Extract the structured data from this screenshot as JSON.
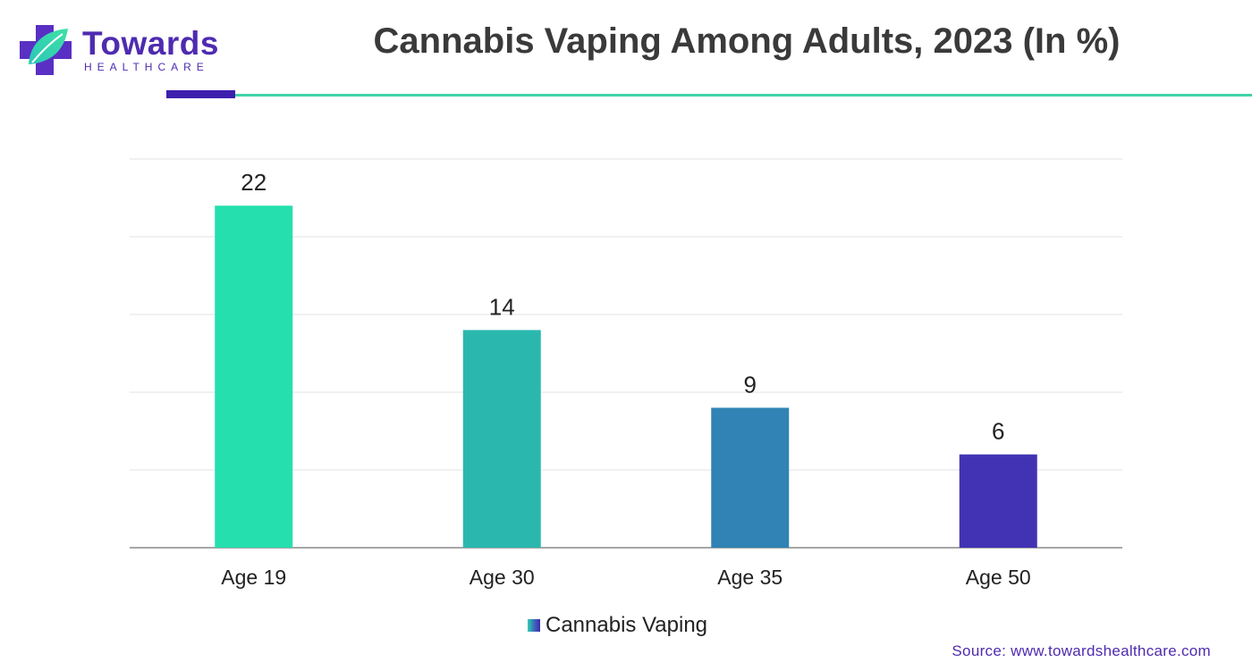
{
  "brand": {
    "name": "Towards",
    "tagline": "HEALTHCARE",
    "icon": "medical-cross-leaf-icon",
    "colors": {
      "purple": "#4f2bb0",
      "teal": "#2ed1b0"
    }
  },
  "source": "Source: www.towardshealthcare.com",
  "chart_data": {
    "type": "bar",
    "title": "Cannabis Vaping Among Adults, 2023 (In %)",
    "categories": [
      "Age 19",
      "Age 30",
      "Age 35",
      "Age 50"
    ],
    "series": [
      {
        "name": "Cannabis Vaping",
        "values": [
          22,
          14,
          9,
          6
        ]
      }
    ],
    "bar_colors": [
      "#25dfae",
      "#2ab8ae",
      "#3083b4",
      "#4133b3"
    ],
    "ylim": [
      0,
      25
    ],
    "grid": true,
    "legend": "bottom-center",
    "xlabel": "",
    "ylabel": ""
  }
}
